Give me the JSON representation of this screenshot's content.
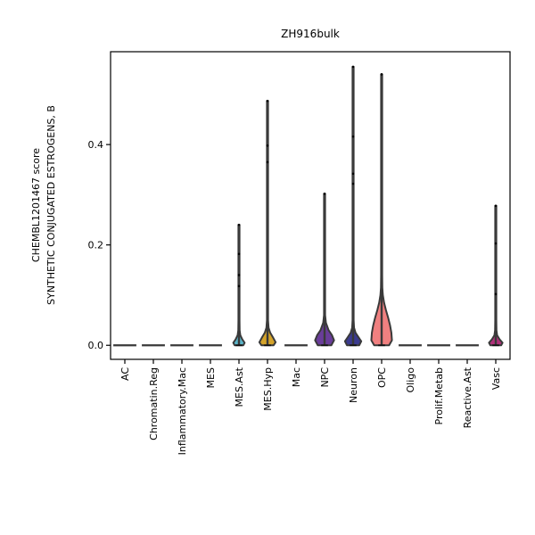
{
  "chart_data": {
    "type": "violin",
    "title": "ZH916bulk",
    "xlabel": "",
    "ylabel_lines": [
      "CHEMBL1201467 score",
      "SYNTHETIC CONJUGATED ESTROGENS, B"
    ],
    "ylim": [
      -0.028,
      0.585
    ],
    "yticks": [
      0.0,
      0.2,
      0.4
    ],
    "ytick_labels": [
      "0.0",
      "0.2",
      "0.4"
    ],
    "grid": false,
    "categories": [
      "AC",
      "Chromatin.Reg",
      "Inflammatory.Mac",
      "MES",
      "MES.Ast",
      "MES.Hyp",
      "Mac",
      "NPC",
      "Neuron",
      "OPC",
      "Oligo",
      "Prolif.Metab",
      "Reactive.Ast",
      "Vasc"
    ],
    "series": [
      {
        "category": "AC",
        "color": "#1f77b4",
        "max": 0.0,
        "points": [],
        "density": []
      },
      {
        "category": "Chromatin.Reg",
        "color": "#ff7f0e",
        "max": 0.0,
        "points": [],
        "density": []
      },
      {
        "category": "Inflammatory.Mac",
        "color": "#2ca02c",
        "max": 0.0,
        "points": [],
        "density": []
      },
      {
        "category": "MES",
        "color": "#d62728",
        "max": 0.0,
        "points": [],
        "density": []
      },
      {
        "category": "MES.Ast",
        "color": "#5ab4c8",
        "max": 0.24,
        "points": [
          0.182,
          0.14,
          0.118,
          0.24
        ],
        "density": [
          [
            0.0,
            0.32
          ],
          [
            0.005,
            0.42
          ],
          [
            0.012,
            0.24
          ],
          [
            0.02,
            0.1
          ],
          [
            0.03,
            0.05
          ],
          [
            0.05,
            0.04
          ],
          [
            0.24,
            0.04
          ]
        ]
      },
      {
        "category": "MES.Hyp",
        "color": "#d4a32a",
        "max": 0.487,
        "points": [
          0.398,
          0.365,
          0.487
        ],
        "density": [
          [
            0.0,
            0.45
          ],
          [
            0.006,
            0.6
          ],
          [
            0.015,
            0.42
          ],
          [
            0.025,
            0.2
          ],
          [
            0.035,
            0.08
          ],
          [
            0.05,
            0.04
          ],
          [
            0.487,
            0.04
          ]
        ]
      },
      {
        "category": "Mac",
        "color": "#8c564b",
        "max": 0.0,
        "points": [],
        "density": []
      },
      {
        "category": "NPC",
        "color": "#6a3d9a",
        "max": 0.302,
        "points": [
          0.302
        ],
        "density": [
          [
            0.0,
            0.5
          ],
          [
            0.01,
            0.7
          ],
          [
            0.02,
            0.55
          ],
          [
            0.03,
            0.3
          ],
          [
            0.045,
            0.1
          ],
          [
            0.06,
            0.04
          ],
          [
            0.302,
            0.04
          ]
        ]
      },
      {
        "category": "Neuron",
        "color": "#3b3b8f",
        "max": 0.555,
        "points": [
          0.416,
          0.342,
          0.322,
          0.555
        ],
        "density": [
          [
            0.0,
            0.45
          ],
          [
            0.008,
            0.6
          ],
          [
            0.016,
            0.4
          ],
          [
            0.025,
            0.18
          ],
          [
            0.035,
            0.07
          ],
          [
            0.05,
            0.04
          ],
          [
            0.555,
            0.04
          ]
        ]
      },
      {
        "category": "OPC",
        "color": "#f08080",
        "max": 0.54,
        "points": [
          0.54
        ],
        "density": [
          [
            0.0,
            0.55
          ],
          [
            0.01,
            0.76
          ],
          [
            0.025,
            0.72
          ],
          [
            0.04,
            0.62
          ],
          [
            0.055,
            0.48
          ],
          [
            0.07,
            0.32
          ],
          [
            0.085,
            0.18
          ],
          [
            0.1,
            0.09
          ],
          [
            0.115,
            0.05
          ],
          [
            0.14,
            0.04
          ],
          [
            0.54,
            0.04
          ]
        ]
      },
      {
        "category": "Oligo",
        "color": "#bcbd22",
        "max": 0.0,
        "points": [],
        "density": []
      },
      {
        "category": "Prolif.Metab",
        "color": "#17becf",
        "max": 0.0,
        "points": [],
        "density": []
      },
      {
        "category": "Reactive.Ast",
        "color": "#aec7e8",
        "max": 0.0,
        "points": [],
        "density": []
      },
      {
        "category": "Vasc",
        "color": "#b0307a",
        "max": 0.278,
        "points": [
          0.203,
          0.102,
          0.278
        ],
        "density": [
          [
            0.0,
            0.4
          ],
          [
            0.005,
            0.5
          ],
          [
            0.012,
            0.28
          ],
          [
            0.02,
            0.1
          ],
          [
            0.03,
            0.05
          ],
          [
            0.05,
            0.04
          ],
          [
            0.278,
            0.04
          ]
        ]
      }
    ]
  }
}
